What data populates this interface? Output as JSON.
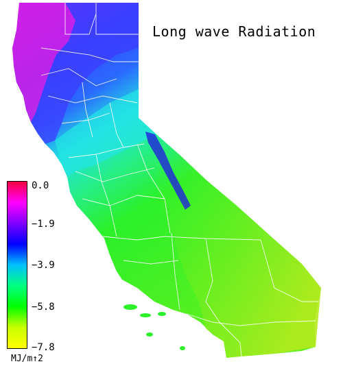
{
  "map": {
    "title": "Long wave Radiation",
    "colors": {
      "north_coast": "#d21ee6",
      "north_interior": "#3c3cff",
      "delta": "#23e6e6",
      "south": "#23f01e",
      "desert": "#9be61e",
      "county_lines": "#ffffff"
    }
  },
  "legend": {
    "ticks": [
      "0.0",
      "−1.9",
      "−3.9",
      "−5.8",
      "−7.8"
    ],
    "units": "MJ/m↑2",
    "gradient": [
      "#ff0040",
      "#ff00ff",
      "#8000ff",
      "#0000ff",
      "#00c0ff",
      "#00ff80",
      "#00ff00",
      "#c8ff00",
      "#ffff00"
    ]
  }
}
